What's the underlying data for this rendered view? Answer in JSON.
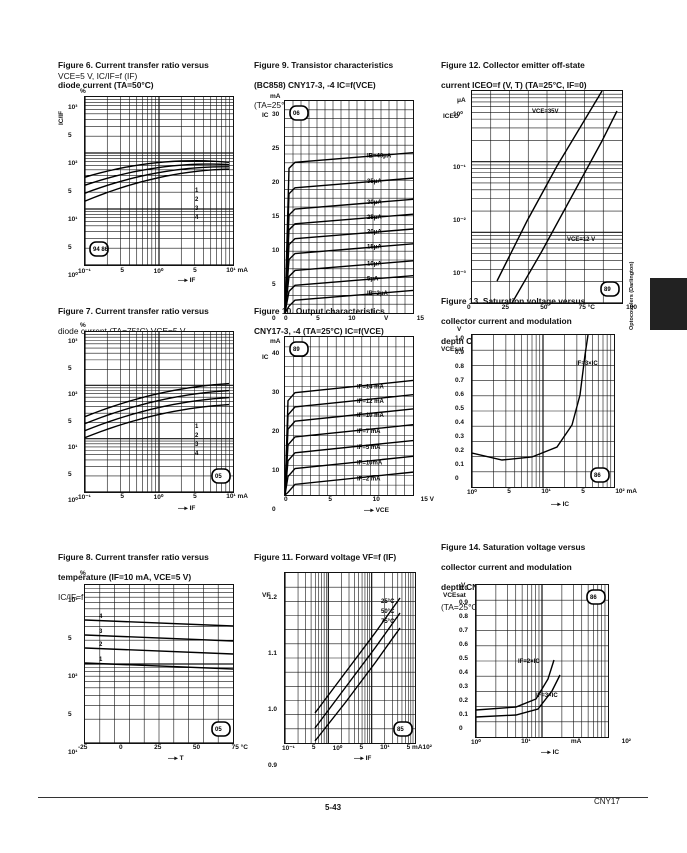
{
  "figures": [
    {
      "id": "f6",
      "title": "Figure 6. Current transfer ratio versus diode current (T",
      "title_line1": "Figure 6. Current transfer ratio versus",
      "title_line2": "diode current (TA=50°C)",
      "subtitle": "VCE=5 V, IC/IF=f (IF)",
      "yunit": "%",
      "yaxis": "IC/IF",
      "ytick_labels": [
        "10³",
        "5",
        "10²",
        "5",
        "10¹",
        "5",
        "10⁰"
      ],
      "xtick_labels": [
        "10⁻¹",
        "5",
        "10⁰",
        "5",
        "10¹ mA"
      ],
      "xaxis": "IF",
      "curve_labels": [
        "1",
        "2",
        "3",
        "4"
      ],
      "badge": "94 86"
    },
    {
      "id": "f9",
      "title_line1": "Figure 9. Transistor characteristics",
      "title_line2": "(BC858) CNY17-3, -4 IC=f(VCE)",
      "subtitle": "(TA=25°C, IF=0)",
      "yunit": "mA",
      "yaxis": "IC",
      "ytick_labels": [
        "30",
        "25",
        "20",
        "15",
        "10",
        "5",
        "0"
      ],
      "xtick_labels": [
        "0",
        "5",
        "10",
        "V",
        "15"
      ],
      "xaxis": "VCE",
      "curve_labels": [
        "IB=40μA",
        "35μA",
        "30μA",
        "25μA",
        "20μA",
        "15μA",
        "10μA",
        "5μA",
        "IB=2μA"
      ],
      "badge": "06"
    },
    {
      "id": "f12",
      "title_line1": "Figure 12. Collector emitter off-state",
      "title_line2": "current ICEO=f (V, T) (TA=25°C, IF=0)",
      "subtitle": "",
      "yunit": "μA",
      "yaxis": "ICEO",
      "ytick_labels": [
        "10⁰",
        "10⁻¹",
        "10⁻²",
        "10⁻³"
      ],
      "xtick_labels": [
        "0",
        "25",
        "50",
        "75 °C",
        "100"
      ],
      "xaxis": "TA",
      "curve_labels": [
        "VCE=35V",
        "VCE=12 V"
      ],
      "badge": "89"
    },
    {
      "id": "f7",
      "title_line1": "Figure 7. Current transfer ratio versus",
      "title_line2": "diode current (TA=75°C) VCE=5 V",
      "subtitle": "",
      "yunit": "%",
      "yaxis": "IC/IF",
      "ytick_labels": [
        "10³",
        "5",
        "10²",
        "5",
        "10¹",
        "5",
        "10⁰"
      ],
      "xtick_labels": [
        "10⁻¹",
        "5",
        "10⁰",
        "5",
        "10¹ mA"
      ],
      "xaxis": "IF",
      "curve_labels": [
        "1",
        "2",
        "3",
        "4"
      ],
      "badge": "05"
    },
    {
      "id": "f10",
      "title_line1": "Figure 10. Output characteristics",
      "title_line2": "CNY17-3, -4 (TA=25°C) IC=f(VCE)",
      "subtitle": "",
      "yunit": "mA",
      "yaxis": "IC",
      "ytick_labels": [
        "40",
        "30",
        "20",
        "10",
        "0"
      ],
      "xtick_labels": [
        "0",
        "5",
        "10",
        "15 V"
      ],
      "xaxis": "VCE",
      "curve_labels": [
        "IF=14 mA",
        "IF=12 mA",
        "IF=10 mA",
        "IF=7 mA",
        "IF=5 mA",
        "IF=10mA",
        "IF=2 mA"
      ],
      "badge": "89"
    },
    {
      "id": "f13",
      "title_line1": "Figure 13. Saturation voltage versus",
      "title_line2": "collector current and modulation",
      "title_line3": "depth CNY17-1 VCEsat=f (IC) (TA=25°C)",
      "subtitle": "",
      "yunit": "V",
      "yaxis": "VCEsat",
      "ytick_labels": [
        "1.0",
        "0.9",
        "0.8",
        "0.7",
        "0.6",
        "0.5",
        "0.4",
        "0.3",
        "0.2",
        "0.1",
        "0"
      ],
      "xtick_labels": [
        "10⁰",
        "5",
        "10¹",
        "5",
        "10² mA"
      ],
      "xaxis": "IC",
      "curve_labels": [
        "IF=3×IC"
      ],
      "badge": "86"
    },
    {
      "id": "f8",
      "title_line1": "Figure 8. Current transfer ratio versus",
      "title_line2": "temperature (IF=10 mA, VCE=5 V)",
      "title_line3": "IC/IF=f (T)",
      "subtitle": "",
      "yunit": "%",
      "yaxis": "IC/IF",
      "ytick_labels": [
        "10³",
        "5",
        "10²",
        "5",
        "10¹"
      ],
      "xtick_labels": [
        "-25",
        "0",
        "25",
        "50",
        "75 °C"
      ],
      "xaxis": "T",
      "curve_labels": [
        "4",
        "3",
        "2",
        "1"
      ],
      "badge": "05"
    },
    {
      "id": "f11",
      "title_line1": "Figure 11. Forward voltage VF=f (IF)",
      "title_line2": "",
      "subtitle": "",
      "yunit": "V",
      "yaxis": "VF",
      "ytick_labels": [
        "1.2",
        "1.1",
        "1.0",
        "0.9"
      ],
      "xtick_labels": [
        "10⁻¹",
        "5",
        "10⁰",
        "5",
        "10¹",
        "5 mA10²"
      ],
      "xaxis": "IF",
      "curve_labels": [
        "25°C",
        "50°C",
        "75°C"
      ],
      "badge": "85"
    },
    {
      "id": "f14",
      "title_line1": "Figure 14. Saturation voltage versus",
      "title_line2": "collector current and modulation",
      "title_line3": "depth CNY17-2 VCEsat=f (IC)",
      "title_line4": "(TA=25°C)",
      "subtitle": "",
      "yunit": "V",
      "yaxis": "VCEsat",
      "ytick_labels": [
        "1.0",
        "0.9",
        "0.8",
        "0.7",
        "0.6",
        "0.5",
        "0.4",
        "0.3",
        "0.2",
        "0.1",
        "0"
      ],
      "xtick_labels": [
        "10⁰",
        "10¹",
        "mA",
        "10²"
      ],
      "xaxis": "IC",
      "curve_labels": [
        "IF=2×IC",
        "IF=3×IC"
      ],
      "badge": "86"
    }
  ],
  "side_tab_text": "Optocouplers (Darlington)",
  "footer": {
    "page_number": "5-43",
    "doc_code": "CNY17"
  }
}
